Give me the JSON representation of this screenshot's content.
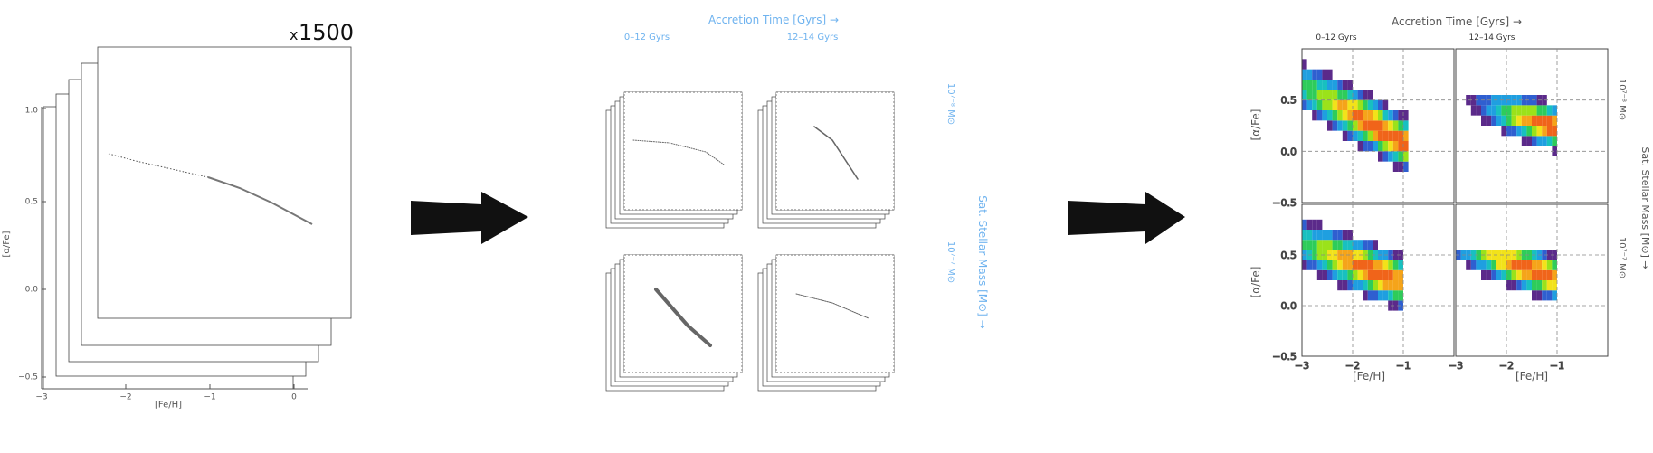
{
  "colors": {
    "axis": "#555555",
    "frame": "#444444",
    "blue_label": "#6fb3ef",
    "arrow": "#111111",
    "gridline": "#888888",
    "heat_scale": [
      "#2a0a4a",
      "#5b2a8a",
      "#2f5fd0",
      "#1f9fe0",
      "#18c0c0",
      "#2ecc5a",
      "#9be21a",
      "#f2e21a",
      "#f5a41a",
      "#f0641a",
      "#e02a1a",
      "#000000"
    ]
  },
  "panel1": {
    "multiplier_prefix": "x",
    "multiplier_value": "1500",
    "xlabel": "[Fe/H]",
    "ylabel": "[α/Fe]",
    "xticks": [
      "−3",
      "−2",
      "−1",
      "0"
    ],
    "yticks": [
      "−0.5",
      "0.0",
      "0.5",
      "1.0"
    ]
  },
  "panel2": {
    "top_title": "Accretion Time [Gyrs] →",
    "col_left": "0–12 Gyrs",
    "col_right": "12–14 Gyrs",
    "right_title": "Sat. Stellar Mass [M⊙] →",
    "row_top": "10⁷⁻⁸ M⊙",
    "row_bottom": "10⁷⁻⁷ M⊙"
  },
  "panel3": {
    "top_title": "Accretion Time [Gyrs] →",
    "col_left": "0–12 Gyrs",
    "col_right": "12–14 Gyrs",
    "right_title": "Sat. Stellar Mass [M⊙] →",
    "row_top": "10⁷⁻⁸ M⊙",
    "row_bottom": "10⁷⁻⁷ M⊙",
    "xlabel": "[Fe/H]",
    "ylabel": "[α/Fe]",
    "xticks": [
      "−3",
      "−2",
      "−1"
    ],
    "yticks": [
      "−0.5",
      "0.0",
      "0.5"
    ],
    "gridlines_x": [
      -2,
      -1
    ],
    "gridlines_y": [
      0.0,
      0.5
    ]
  },
  "chart_data": {
    "type": "heatmap",
    "panels": [
      {
        "x": [
          -1.5,
          -1.0
        ],
        "y": [
          0.1,
          0.2
        ]
      },
      {
        "x": [
          -1.2,
          -1.1
        ],
        "y": [
          0.25,
          0.3
        ]
      },
      {
        "x": [
          -1.6,
          -1.3
        ],
        "y": [
          0.3,
          0.35
        ]
      },
      {
        "x": [
          -1.6,
          -1.2
        ],
        "y": [
          0.3,
          0.35
        ]
      }
    ]
  }
}
